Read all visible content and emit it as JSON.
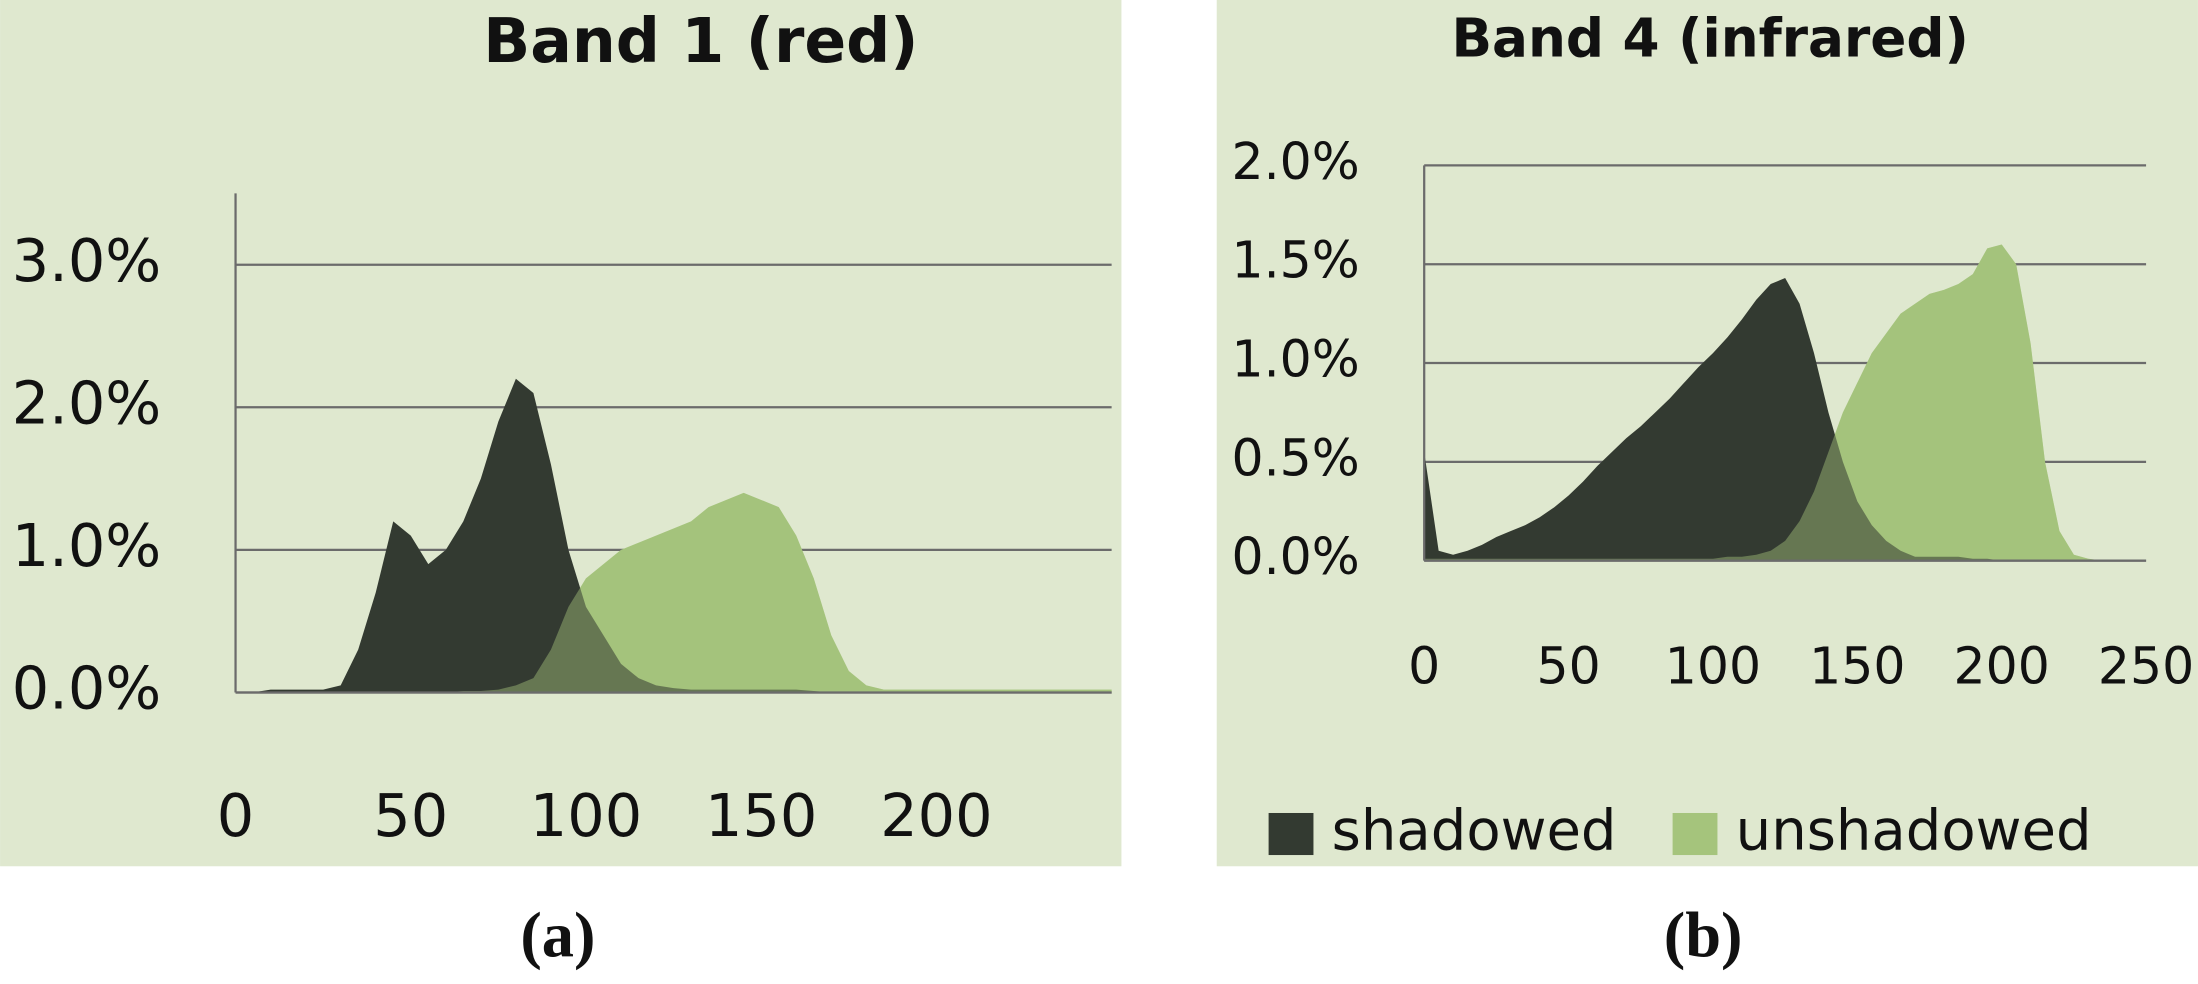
{
  "chart_data": [
    {
      "type": "area",
      "title": "Band 1 (red)",
      "x": [
        0,
        5,
        10,
        15,
        20,
        25,
        30,
        35,
        40,
        45,
        50,
        55,
        60,
        65,
        70,
        75,
        80,
        85,
        90,
        95,
        100,
        105,
        110,
        115,
        120,
        125,
        130,
        135,
        140,
        145,
        150,
        155,
        160,
        165,
        170,
        175,
        180,
        185,
        190,
        195,
        200,
        205,
        210,
        215,
        220,
        225,
        230,
        235,
        240,
        245,
        250
      ],
      "series": [
        {
          "name": "shadowed",
          "color": "#333a31",
          "values": [
            0,
            0,
            0.02,
            0.02,
            0.02,
            0.02,
            0.05,
            0.3,
            0.7,
            1.2,
            1.1,
            0.9,
            1.0,
            1.2,
            1.5,
            1.9,
            2.2,
            2.1,
            1.6,
            1.0,
            0.6,
            0.4,
            0.2,
            0.1,
            0.05,
            0.03,
            0.02,
            0.02,
            0.02,
            0.02,
            0.02,
            0.02,
            0.02,
            0.01,
            0,
            0,
            0,
            0,
            0,
            0,
            0,
            0,
            0,
            0,
            0,
            0,
            0,
            0,
            0,
            0,
            0
          ]
        },
        {
          "name": "unshadowed",
          "color": "#a5c47c",
          "values": [
            0,
            0,
            0,
            0,
            0,
            0,
            0,
            0,
            0,
            0,
            0,
            0,
            0,
            0.01,
            0.01,
            0.02,
            0.05,
            0.1,
            0.3,
            0.6,
            0.8,
            0.9,
            1.0,
            1.05,
            1.1,
            1.15,
            1.2,
            1.3,
            1.35,
            1.4,
            1.35,
            1.3,
            1.1,
            0.8,
            0.4,
            0.15,
            0.05,
            0.02,
            0.02,
            0.02,
            0.02,
            0.02,
            0.02,
            0.02,
            0.02,
            0.02,
            0.02,
            0.02,
            0.02,
            0.02,
            0.02
          ]
        }
      ],
      "xlim": [
        0,
        250
      ],
      "xticks": [
        0,
        50,
        100,
        150,
        200
      ],
      "ylim": [
        0,
        3.5
      ],
      "yticks": [
        {
          "value": 0,
          "label": "0.0%"
        },
        {
          "value": 1,
          "label": "1.0%"
        },
        {
          "value": 2,
          "label": "2.0%"
        },
        {
          "value": 3,
          "label": "3.0%"
        }
      ],
      "grid": true,
      "legend": false
    },
    {
      "type": "area",
      "title": "Band 4 (infrared)",
      "x": [
        0,
        5,
        10,
        15,
        20,
        25,
        30,
        35,
        40,
        45,
        50,
        55,
        60,
        65,
        70,
        75,
        80,
        85,
        90,
        95,
        100,
        105,
        110,
        115,
        120,
        125,
        130,
        135,
        140,
        145,
        150,
        155,
        160,
        165,
        170,
        175,
        180,
        185,
        190,
        195,
        200,
        205,
        210,
        215,
        220,
        225,
        230,
        235,
        240,
        245,
        250
      ],
      "series": [
        {
          "name": "shadowed",
          "color": "#333a31",
          "values": [
            0.55,
            0.05,
            0.03,
            0.05,
            0.08,
            0.12,
            0.15,
            0.18,
            0.22,
            0.27,
            0.33,
            0.4,
            0.48,
            0.55,
            0.62,
            0.68,
            0.75,
            0.82,
            0.9,
            0.98,
            1.05,
            1.13,
            1.22,
            1.32,
            1.4,
            1.43,
            1.3,
            1.05,
            0.75,
            0.5,
            0.3,
            0.18,
            0.1,
            0.05,
            0.02,
            0.02,
            0.02,
            0.02,
            0.01,
            0.01,
            0,
            0,
            0,
            0,
            0,
            0,
            0,
            0,
            0,
            0,
            0
          ]
        },
        {
          "name": "unshadowed",
          "color": "#a5c47c",
          "values": [
            0.01,
            0.01,
            0.01,
            0.01,
            0.01,
            0.01,
            0.01,
            0.01,
            0.01,
            0.01,
            0.01,
            0.01,
            0.01,
            0.01,
            0.01,
            0.01,
            0.01,
            0.01,
            0.01,
            0.01,
            0.01,
            0.02,
            0.02,
            0.03,
            0.05,
            0.1,
            0.2,
            0.35,
            0.55,
            0.75,
            0.9,
            1.05,
            1.15,
            1.25,
            1.3,
            1.35,
            1.37,
            1.4,
            1.45,
            1.58,
            1.6,
            1.5,
            1.1,
            0.5,
            0.15,
            0.03,
            0.01,
            0,
            0,
            0,
            0
          ]
        }
      ],
      "xlim": [
        0,
        250
      ],
      "xticks": [
        0,
        50,
        100,
        150,
        200,
        250
      ],
      "ylim": [
        0,
        2
      ],
      "yticks": [
        {
          "value": 0,
          "label": "0.0%"
        },
        {
          "value": 0.5,
          "label": "0.5%"
        },
        {
          "value": 1,
          "label": "1.0%"
        },
        {
          "value": 1.5,
          "label": "1.5%"
        },
        {
          "value": 2,
          "label": "2.0%"
        }
      ],
      "grid": true,
      "legend": true
    }
  ],
  "captions": [
    "(a)",
    "(b)"
  ]
}
